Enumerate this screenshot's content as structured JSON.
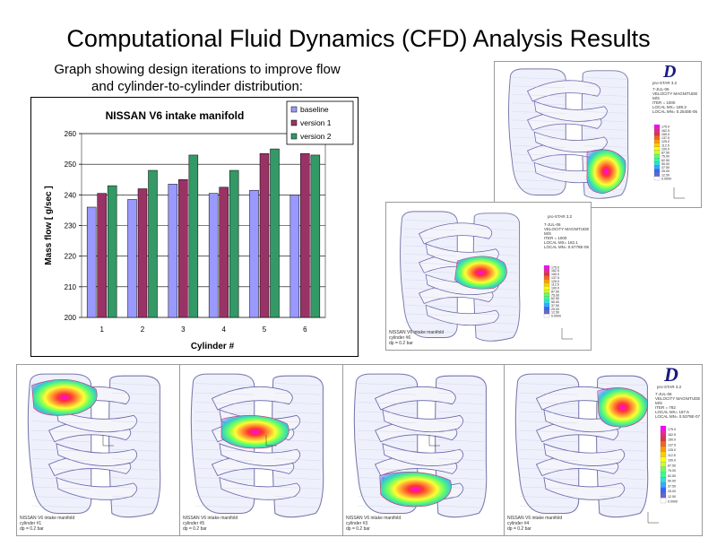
{
  "page": {
    "title": "Computational Fluid Dynamics (CFD) Analysis Results",
    "subtitle_line1": "Graph showing design iterations to improve flow",
    "subtitle_line2": "and cylinder-to-cylinder distribution:"
  },
  "chart_data": {
    "type": "bar",
    "title": "NISSAN V6 intake manifold",
    "xlabel": "Cylinder #",
    "ylabel": "Mass flow  [ g/sec ]",
    "categories": [
      "1",
      "2",
      "3",
      "4",
      "5",
      "6"
    ],
    "ylim": [
      200,
      260
    ],
    "yticks": [
      "200",
      "210",
      "220",
      "230",
      "240",
      "250",
      "260"
    ],
    "grid": true,
    "legend_position": "top-right",
    "series": [
      {
        "name": "baseline",
        "color": "#9999ff",
        "values": [
          236,
          238.5,
          243.5,
          240.5,
          241.5,
          240
        ]
      },
      {
        "name": "version 1",
        "color": "#993366",
        "values": [
          240.5,
          242,
          245,
          242.5,
          253.5,
          253.5
        ]
      },
      {
        "name": "version 2",
        "color": "#339966",
        "values": [
          243,
          248,
          253,
          248,
          255,
          253
        ]
      }
    ]
  },
  "cfd_panels": [
    {
      "id": "top-right",
      "logo": "D",
      "logo_label": "pro-STAR 3.2",
      "legend_lines": [
        "7-JUL-06",
        "VELOCITY MAGNITUDE",
        "M/S",
        "ITER = 1000",
        "LOCAL MX= 189.3",
        "LOCAL MN= 0.2540E-05"
      ],
      "caption": [],
      "hot_side": "right"
    },
    {
      "id": "middle",
      "logo": "",
      "logo_label": "pro-STAR 3.2",
      "legend_lines": [
        "7-JUL-06",
        "VELOCITY MAGNITUDE",
        "M/S",
        "ITER = 1000",
        "LOCAL MX= 182.1",
        "LOCAL MN= 0.5778E-05"
      ],
      "caption": [
        "NISSAN V6 intake manifold",
        "cylinder #6",
        "dp = 0.2 bar"
      ],
      "hot_side": "center"
    },
    {
      "id": "bottom-1",
      "logo": "",
      "logo_label": "",
      "legend_lines": [],
      "caption": [
        "NISSAN V6 intake manifold",
        "cylinder #1",
        "dp = 0.2 bar"
      ],
      "hot_side": "left-top"
    },
    {
      "id": "bottom-2",
      "logo": "",
      "logo_label": "",
      "legend_lines": [],
      "caption": [
        "NISSAN V6 intake manifold",
        "cylinder #5",
        "dp = 0.2 bar"
      ],
      "hot_side": "left-mid"
    },
    {
      "id": "bottom-3",
      "logo": "",
      "logo_label": "",
      "legend_lines": [],
      "caption": [
        "NISSAN V6 intake manifold",
        "cylinder #3",
        "dp = 0.2 bar"
      ],
      "hot_side": "left-bottom"
    },
    {
      "id": "bottom-4",
      "logo": "D",
      "logo_label": "pro-STAR 3.2",
      "legend_lines": [
        "7-JUL-06",
        "VELOCITY MAGNITUDE",
        "M/S",
        "ITER = 782",
        "LOCAL MX= 187.6",
        "LOCAL MN= 0.5379E-07"
      ],
      "caption": [
        "NISSAN V6 intake manifold",
        "cylinder #4",
        "dp = 0.2 bar"
      ],
      "hot_side": "right-top"
    }
  ],
  "colorscale_labels": [
    "175.0",
    "162.5",
    "150.0",
    "137.5",
    "125.0",
    "112.5",
    "100.0",
    "87.50",
    "75.00",
    "62.50",
    "50.00",
    "37.50",
    "25.00",
    "12.50",
    "0.0000"
  ]
}
